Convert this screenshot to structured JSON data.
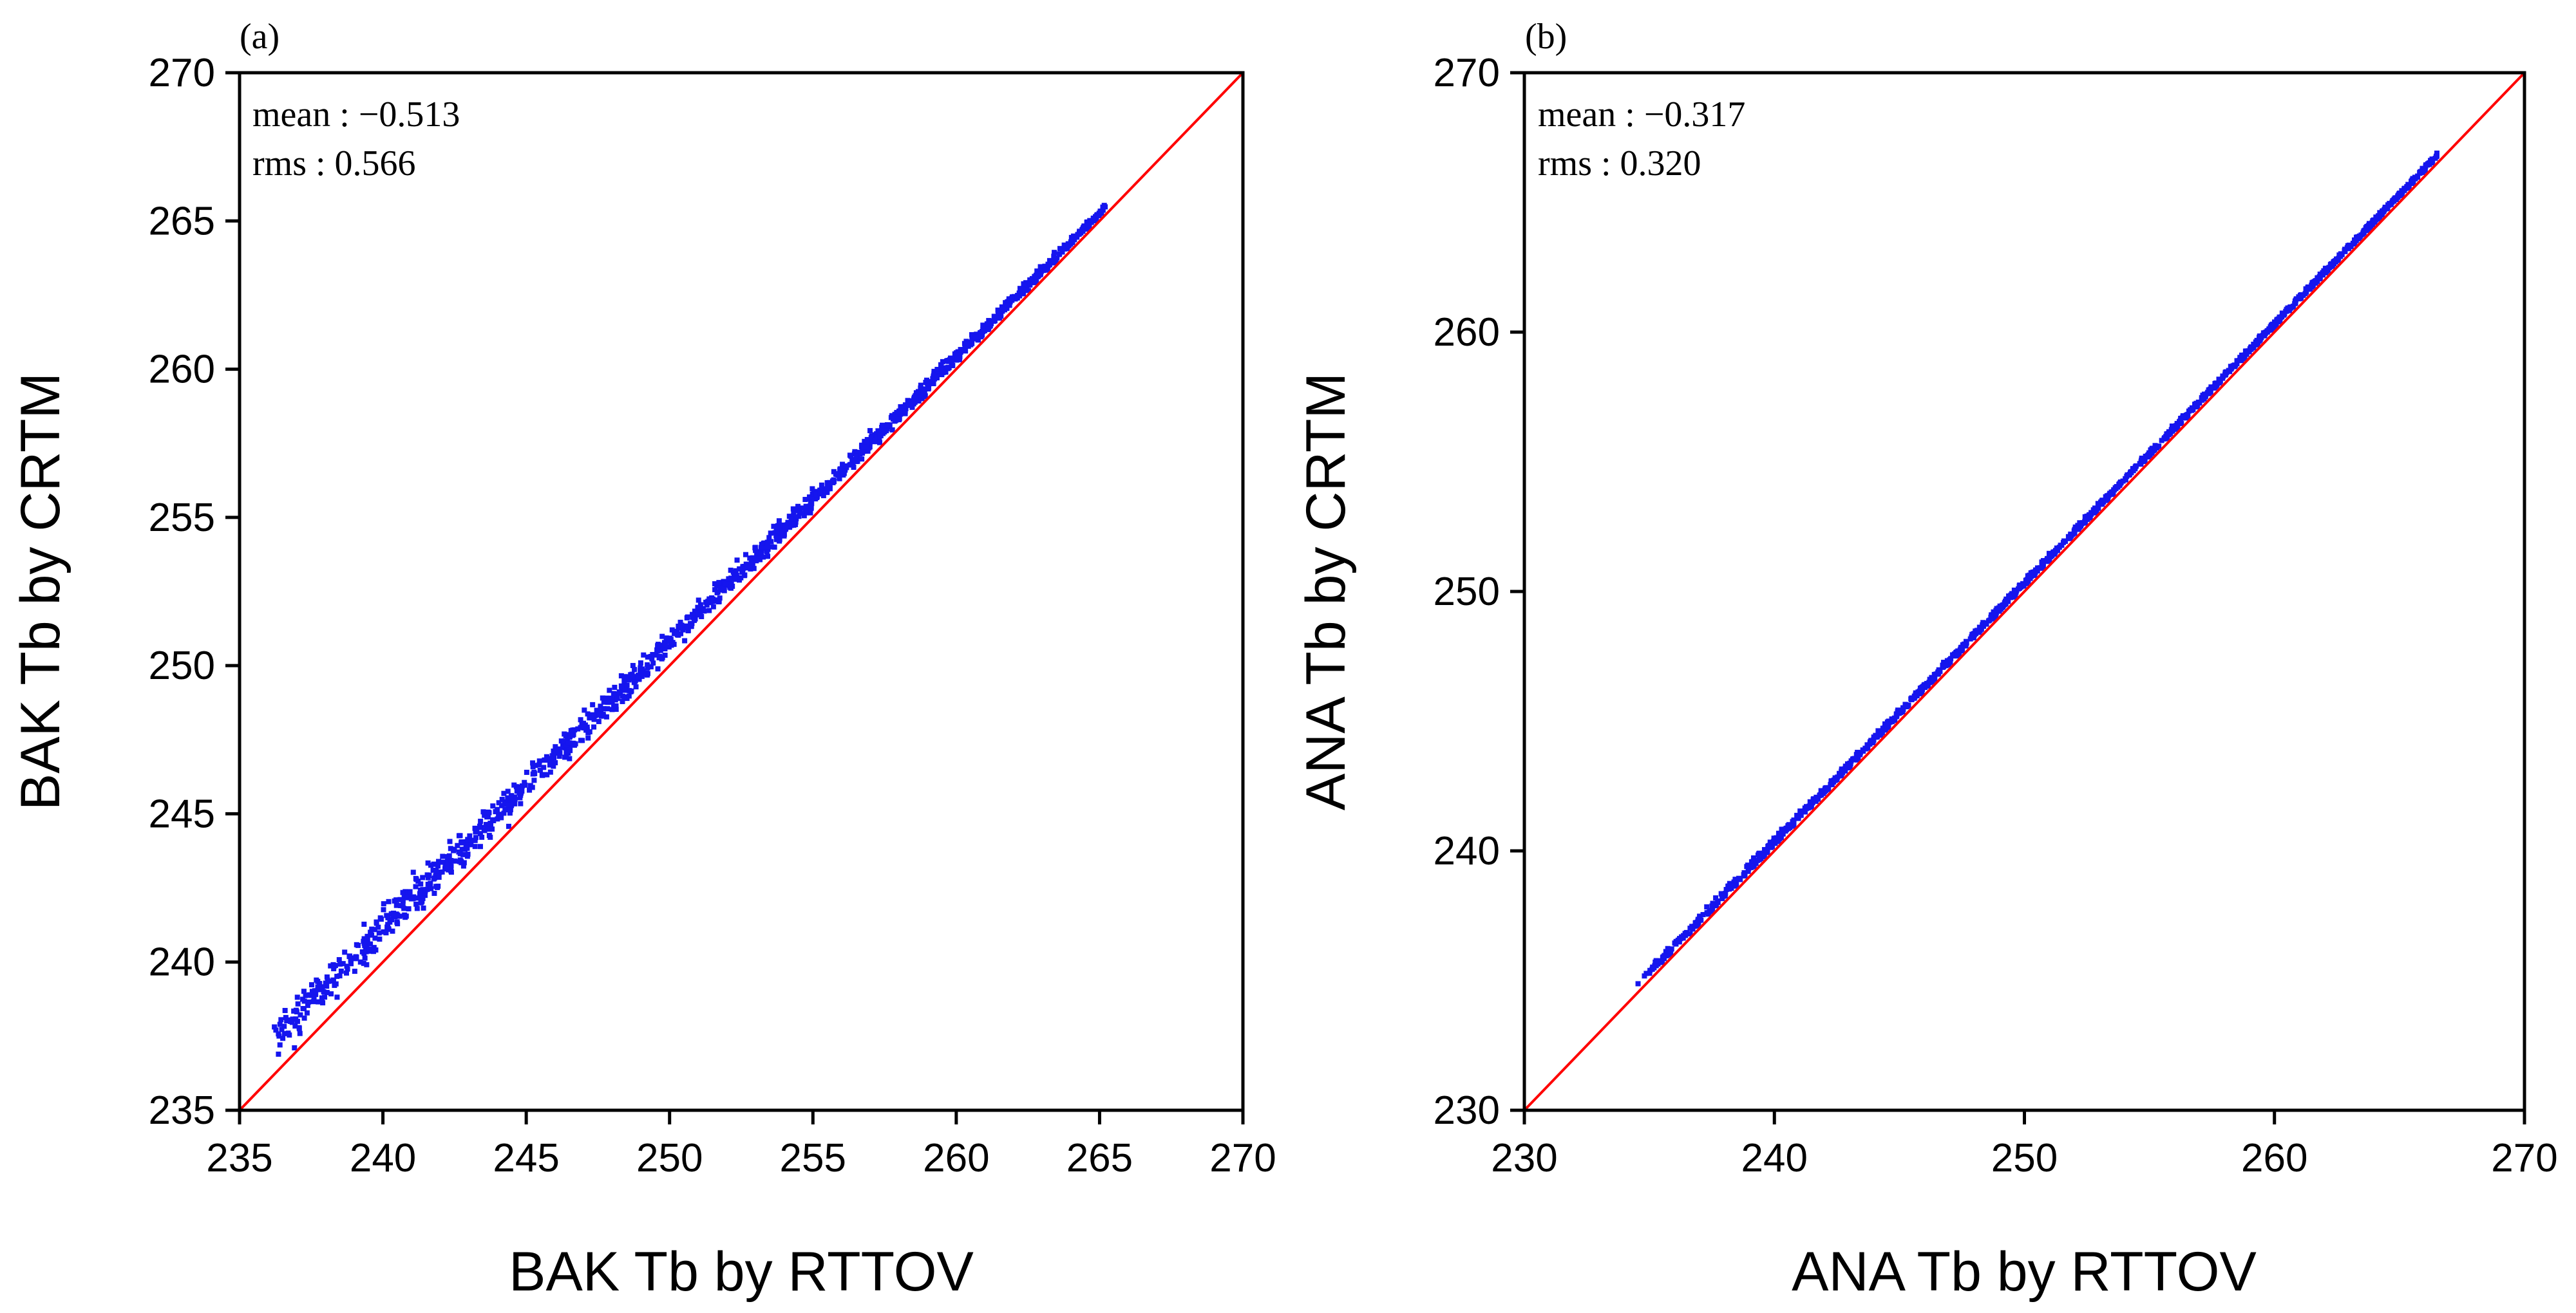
{
  "chart_data": [
    {
      "type": "scatter",
      "panel_label": "(a)",
      "xlabel": "BAK Tb by RTTOV",
      "ylabel": "BAK Tb by CRTM",
      "xlim": [
        235,
        270
      ],
      "ylim": [
        235,
        270
      ],
      "xticks": [
        235,
        240,
        245,
        250,
        255,
        260,
        265,
        270
      ],
      "yticks": [
        235,
        240,
        245,
        250,
        255,
        260,
        265,
        270
      ],
      "reference_line": "y = x (red)",
      "stats": {
        "mean": "mean : −0.513",
        "rms": "rms : 0.566"
      },
      "series": [
        {
          "name": "BAK",
          "color": "#1515ee",
          "x_range": [
            236.2,
            265.2
          ],
          "offset_at_min": 1.25,
          "offset_at_max": 0.25,
          "spread_at_min": 1.2,
          "spread_at_max": 0.2
        }
      ]
    },
    {
      "type": "scatter",
      "panel_label": "(b)",
      "xlabel": "ANA Tb by RTTOV",
      "ylabel": "ANA Tb by CRTM",
      "xlim": [
        230,
        270
      ],
      "ylim": [
        230,
        270
      ],
      "xticks": [
        230,
        240,
        250,
        260,
        270
      ],
      "yticks": [
        230,
        240,
        250,
        260,
        270
      ],
      "reference_line": "y = x (red)",
      "stats": {
        "mean": "mean : −0.317",
        "rms": "rms : 0.320"
      },
      "series": [
        {
          "name": "ANA",
          "color": "#1515ee",
          "x_range": [
            234.5,
            266.5
          ],
          "offset_at_min": 0.35,
          "offset_at_max": 0.3,
          "spread_at_min": 0.3,
          "spread_at_max": 0.15
        }
      ]
    }
  ]
}
